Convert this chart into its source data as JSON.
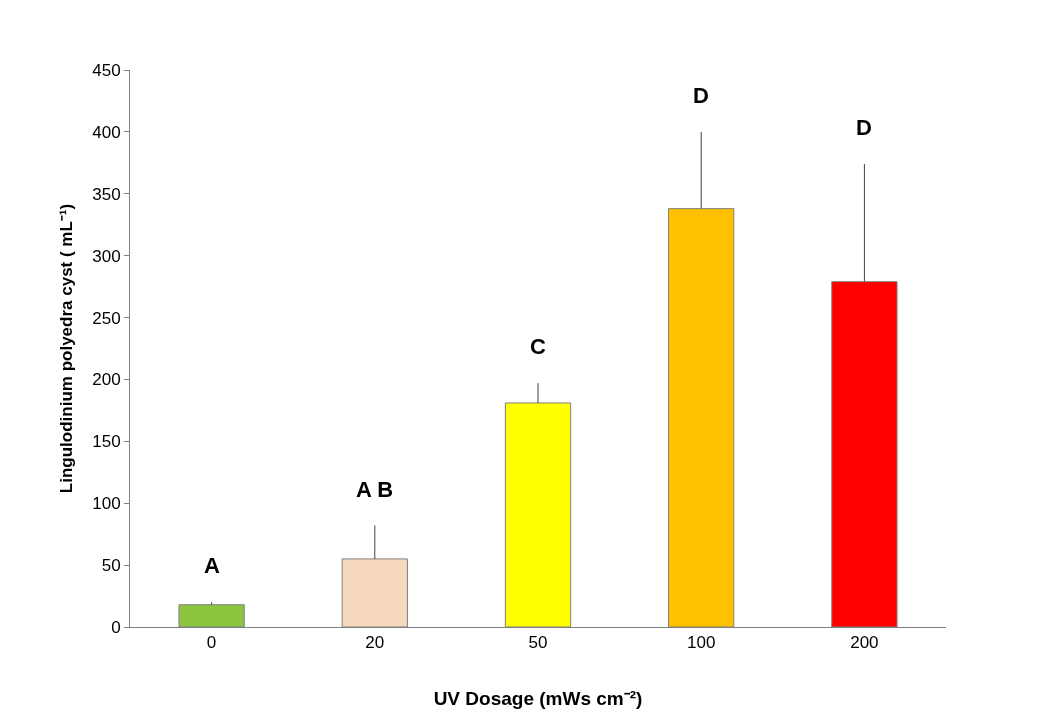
{
  "chart_data": {
    "type": "bar",
    "categories": [
      "0",
      "20",
      "50",
      "100",
      "200"
    ],
    "values": [
      18,
      55,
      181,
      338,
      279
    ],
    "colors": [
      "#8cc63f",
      "#f6d9bd",
      "#ffff00",
      "#ffc000",
      "#ff0000"
    ],
    "errors": [
      [
        18,
        20
      ],
      [
        55,
        82
      ],
      [
        181,
        197
      ],
      [
        338,
        400
      ],
      [
        279,
        374
      ]
    ],
    "ylim": [
      0,
      450
    ],
    "yticks": [
      0,
      50,
      100,
      150,
      200,
      250,
      300,
      350,
      400,
      450
    ],
    "xlabel": "UV Dosage (mWs cm⁻²)",
    "ylabel": "Lingulodinium polyedra cyst ( mL⁻¹)",
    "annotations": [
      "A",
      "A B",
      "C",
      "D",
      "D"
    ]
  }
}
